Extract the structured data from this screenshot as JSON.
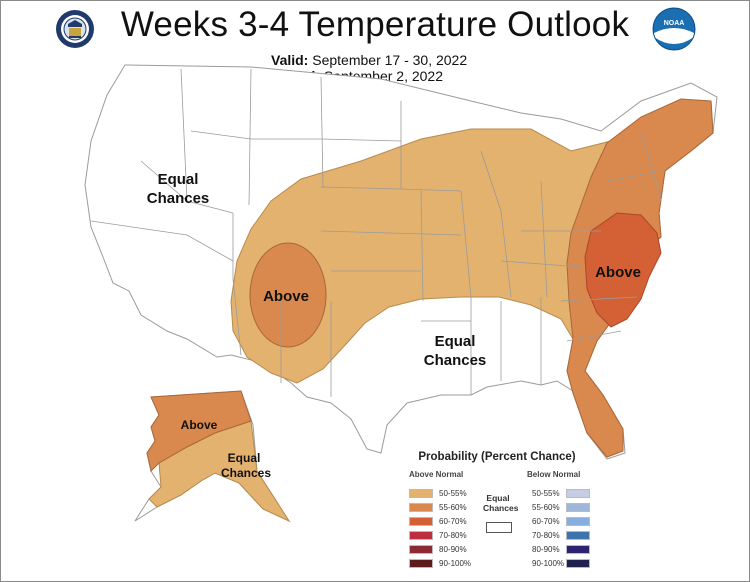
{
  "header": {
    "title": "Weeks 3-4 Temperature Outlook",
    "valid_label": "Valid:",
    "valid_value": "September 17 - 30, 2022",
    "issued_label": "Issued:",
    "issued_value": "September 2, 2022",
    "noaa_text": "NOAA"
  },
  "map_labels": {
    "west_equal_line1": "Equal",
    "west_equal_line2": "Chances",
    "southwest_above": "Above",
    "south_equal_line1": "Equal",
    "south_equal_line2": "Chances",
    "east_above": "Above",
    "alaska_above": "Above",
    "alaska_equal_line1": "Equal",
    "alaska_equal_line2": "Chances"
  },
  "colors": {
    "above_50_55": "#e3b26e",
    "above_55_60": "#d9894d",
    "above_60_70": "#d46035",
    "above_70_80": "#bc2f3f",
    "above_80_90": "#8c2a32",
    "above_90_100": "#5c1c1d",
    "below_50_55": "#c4cde1",
    "below_55_60": "#9fb7d9",
    "below_60_70": "#86aede",
    "below_70_80": "#3d74ab",
    "below_80_90": "#2c2470",
    "below_90_100": "#201f4d",
    "boundary": "#9b9b9b"
  },
  "legend": {
    "title": "Probability (Percent Chance)",
    "above_header": "Above Normal",
    "below_header": "Below Normal",
    "equal_line1": "Equal",
    "equal_line2": "Chances",
    "above_rows": [
      "50-55%",
      "55-60%",
      "60-70%",
      "70-80%",
      "80-90%",
      "90-100%"
    ],
    "below_rows": [
      "50-55%",
      "55-60%",
      "60-70%",
      "70-80%",
      "80-90%",
      "90-100%"
    ]
  }
}
